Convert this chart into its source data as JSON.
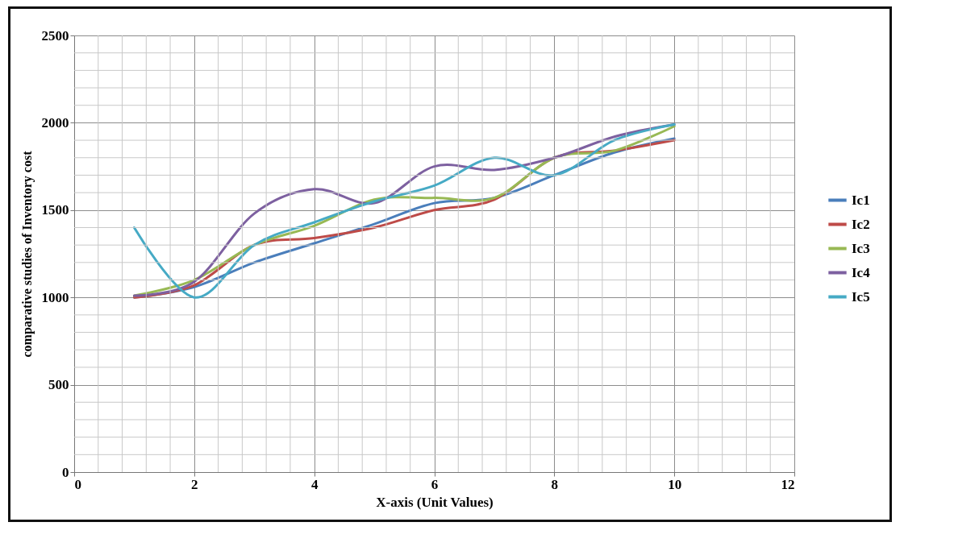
{
  "chart_data": {
    "type": "line",
    "xlabel": "X-axis (Unit Values)",
    "ylabel": "comparative studies of Inventory cost",
    "x": [
      1,
      2,
      3,
      4,
      5,
      6,
      7,
      8,
      9,
      10
    ],
    "series": [
      {
        "name": "Ic1",
        "color": "#4a7ebb",
        "values": [
          1000,
          1060,
          1200,
          1310,
          1420,
          1540,
          1570,
          1700,
          1830,
          1910
        ]
      },
      {
        "name": "Ic2",
        "color": "#be4b48",
        "values": [
          1000,
          1070,
          1300,
          1340,
          1400,
          1500,
          1560,
          1800,
          1840,
          1900
        ]
      },
      {
        "name": "Ic3",
        "color": "#98b954",
        "values": [
          1010,
          1100,
          1300,
          1410,
          1560,
          1570,
          1570,
          1800,
          1840,
          1980
        ]
      },
      {
        "name": "Ic4",
        "color": "#7d60a0",
        "values": [
          1010,
          1090,
          1480,
          1620,
          1540,
          1750,
          1730,
          1800,
          1920,
          1990
        ]
      },
      {
        "name": "Ic5",
        "color": "#46aac5",
        "values": [
          1400,
          1000,
          1300,
          1430,
          1550,
          1640,
          1800,
          1700,
          1900,
          1990
        ]
      }
    ],
    "xlim": [
      0,
      12
    ],
    "xticks": [
      0,
      2,
      4,
      6,
      8,
      10,
      12
    ],
    "ylim": [
      0,
      2500
    ],
    "yticks": [
      0,
      500,
      1000,
      1500,
      2000,
      2500
    ],
    "grid": true,
    "legend": "right",
    "marker": "none",
    "line_style": "solid"
  }
}
